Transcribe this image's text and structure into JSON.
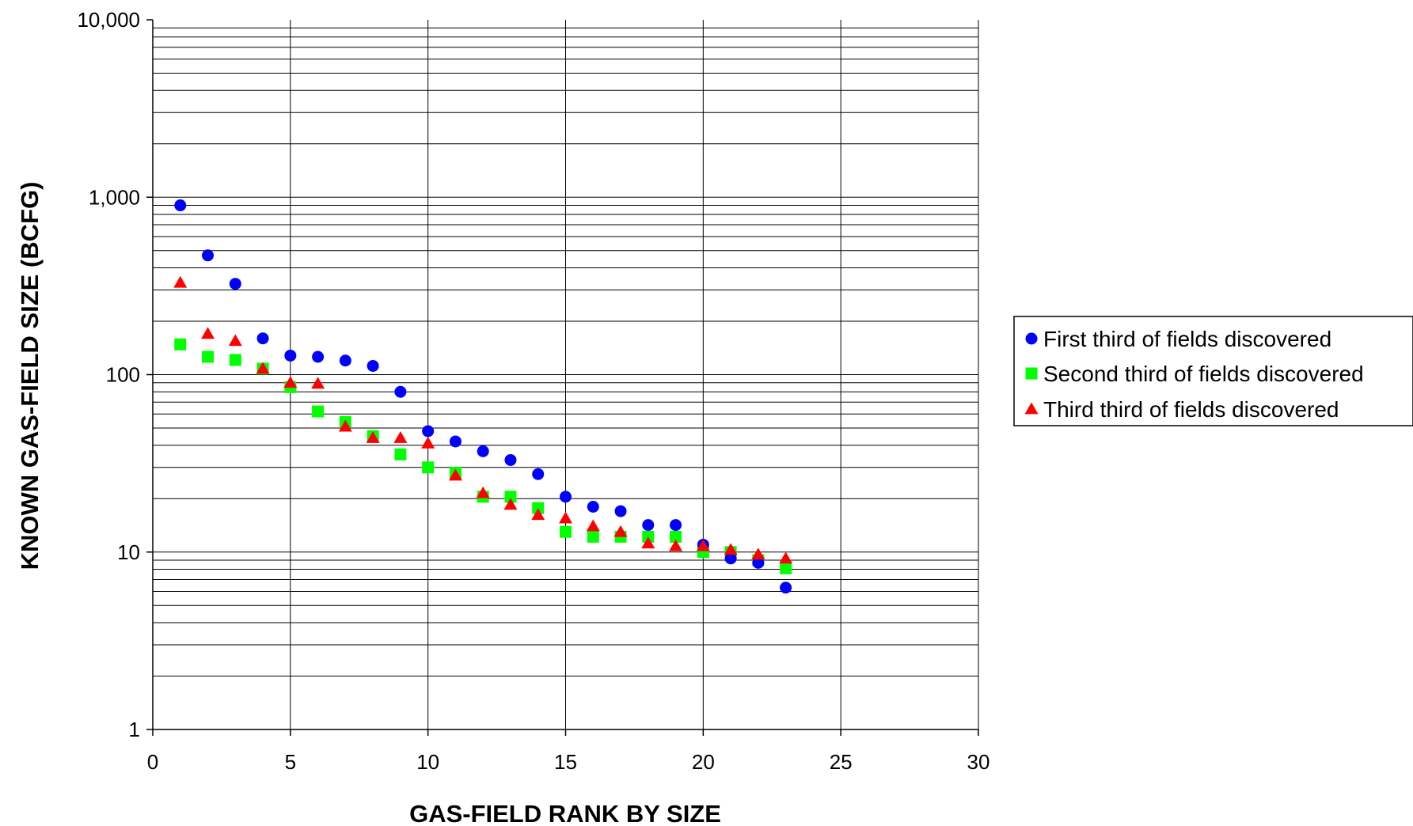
{
  "chart_data": {
    "type": "scatter",
    "title": "",
    "xlabel": "GAS-FIELD RANK BY SIZE",
    "ylabel": "KNOWN GAS-FIELD SIZE (BCFG)",
    "x_scale": "linear",
    "y_scale": "log",
    "xlim": [
      0,
      30
    ],
    "ylim": [
      1,
      10000
    ],
    "x_ticks": [
      "0",
      "5",
      "10",
      "15",
      "20",
      "25",
      "30"
    ],
    "y_ticks": [
      "1",
      "10",
      "100",
      "1,000",
      "10,000"
    ],
    "grid": true,
    "legend_position": "right",
    "series": [
      {
        "name": "First third of fields discovered",
        "color": "#0000ff",
        "marker": "circle",
        "x": [
          1,
          2,
          3,
          4,
          5,
          6,
          7,
          8,
          9,
          10,
          11,
          12,
          13,
          14,
          15,
          16,
          17,
          18,
          19,
          20,
          21,
          22,
          23
        ],
        "y": [
          900,
          470,
          325,
          160,
          128,
          126,
          120,
          112,
          80,
          48,
          42,
          37,
          33,
          27.5,
          20.5,
          18,
          17,
          14.2,
          14.2,
          11,
          9.2,
          8.7,
          6.3
        ]
      },
      {
        "name": "Second third of fields discovered",
        "color": "#00ff00",
        "marker": "square",
        "x": [
          1,
          2,
          3,
          4,
          5,
          6,
          7,
          8,
          9,
          10,
          11,
          12,
          13,
          14,
          15,
          16,
          17,
          18,
          19,
          20,
          21,
          22,
          23
        ],
        "y": [
          148,
          126,
          121,
          108,
          85,
          62,
          54,
          45,
          35.5,
          30,
          28,
          20.5,
          20.5,
          17.7,
          13,
          12.2,
          12.2,
          12.2,
          12.2,
          10,
          10,
          9,
          8.1
        ]
      },
      {
        "name": "Third third of fields discovered",
        "color": "#ff0000",
        "marker": "triangle",
        "x": [
          1,
          2,
          3,
          4,
          5,
          6,
          7,
          8,
          9,
          10,
          11,
          12,
          13,
          14,
          15,
          16,
          17,
          18,
          19,
          20,
          21,
          22,
          23
        ],
        "y": [
          330,
          170,
          155,
          108,
          90,
          89,
          51,
          44,
          44,
          41,
          27,
          21.5,
          18.5,
          16.2,
          15.5,
          14,
          13,
          11.2,
          10.8,
          10.8,
          10.3,
          9.7,
          9.2
        ]
      }
    ]
  }
}
